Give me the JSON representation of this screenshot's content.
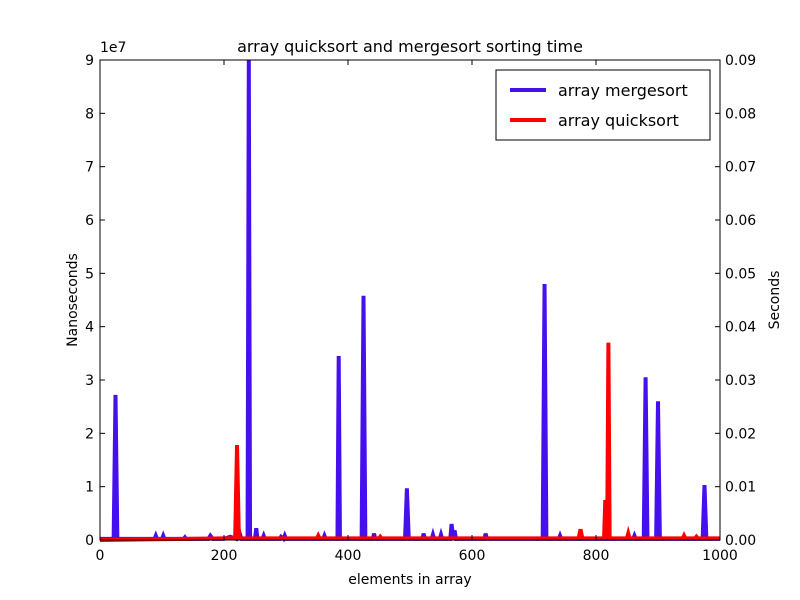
{
  "chart_data": {
    "type": "line",
    "title": "array quicksort and mergesort sorting time",
    "xlabel": "elements in array",
    "ylabel": "Nanoseconds",
    "y2label": "Seconds",
    "y_offset_label": "1e7",
    "xlim": [
      0,
      1000
    ],
    "ylim": [
      0,
      9
    ],
    "y2lim": [
      0,
      0.09
    ],
    "x_ticks": [
      0,
      200,
      400,
      600,
      800,
      1000
    ],
    "y_ticks": [
      0,
      1,
      2,
      3,
      4,
      5,
      6,
      7,
      8,
      9
    ],
    "y2_ticks": [
      "0.00",
      "0.01",
      "0.02",
      "0.03",
      "0.04",
      "0.05",
      "0.06",
      "0.07",
      "0.08",
      "0.09"
    ],
    "grid": false,
    "legend_position": "top-right",
    "series": [
      {
        "name": "array mergesort",
        "color": "#4411ee",
        "x": [
          0,
          22,
          25,
          28,
          88,
          90,
          92,
          100,
          102,
          104,
          135,
          137,
          139,
          175,
          178,
          182,
          200,
          210,
          220,
          224,
          228,
          232,
          236,
          238,
          240,
          242,
          244,
          250,
          252,
          254,
          262,
          264,
          266,
          290,
          292,
          296,
          298,
          300,
          360,
          362,
          364,
          380,
          383,
          385,
          387,
          390,
          392,
          420,
          422,
          425,
          428,
          430,
          440,
          442,
          444,
          490,
          492,
          495,
          498,
          500,
          520,
          522,
          524,
          535,
          537,
          539,
          548,
          550,
          552,
          565,
          567,
          570,
          572,
          574,
          620,
          622,
          624,
          712,
          714,
          717,
          720,
          722,
          740,
          742,
          744,
          860,
          862,
          864,
          875,
          877,
          880,
          883,
          885,
          895,
          897,
          900,
          903,
          905,
          970,
          972,
          975,
          978,
          980,
          1000
        ],
        "values": [
          0.02,
          0.02,
          2.72,
          0.02,
          0.02,
          0.08,
          0.02,
          0.02,
          0.08,
          0.02,
          0.02,
          0.05,
          0.02,
          0.02,
          0.08,
          0.02,
          0.02,
          0.06,
          0.02,
          0.18,
          0.02,
          0.02,
          0.02,
          0.02,
          9.0,
          0.02,
          0.02,
          0.02,
          0.22,
          0.02,
          0.02,
          0.08,
          0.02,
          0.02,
          0.06,
          0.02,
          0.08,
          0.02,
          0.02,
          0.08,
          0.02,
          0.02,
          0.02,
          3.45,
          0.02,
          0.02,
          0.02,
          0.02,
          0.02,
          4.58,
          0.02,
          0.02,
          0.02,
          0.12,
          0.02,
          0.02,
          0.02,
          0.97,
          0.02,
          0.02,
          0.02,
          0.12,
          0.02,
          0.02,
          0.1,
          0.02,
          0.02,
          0.1,
          0.02,
          0.02,
          0.3,
          0.02,
          0.18,
          0.02,
          0.02,
          0.12,
          0.02,
          0.02,
          0.02,
          4.8,
          0.02,
          0.02,
          0.02,
          0.08,
          0.02,
          0.02,
          0.08,
          0.02,
          0.02,
          0.02,
          3.05,
          0.02,
          0.02,
          0.02,
          0.02,
          2.6,
          0.02,
          0.02,
          0.02,
          0.02,
          1.03,
          0.02,
          0.02,
          0.02
        ]
      },
      {
        "name": "array quicksort",
        "color": "#ff0000",
        "x": [
          0,
          200,
          215,
          218,
          221,
          224,
          227,
          300,
          350,
          352,
          354,
          400,
          450,
          452,
          454,
          500,
          600,
          700,
          770,
          772,
          775,
          778,
          780,
          810,
          813,
          815,
          818,
          820,
          822,
          825,
          827,
          830,
          850,
          852,
          854,
          900,
          940,
          942,
          944,
          960,
          962,
          964,
          1000
        ],
        "values": [
          0.0,
          0.03,
          0.03,
          0.03,
          1.78,
          0.03,
          0.03,
          0.03,
          0.03,
          0.08,
          0.03,
          0.03,
          0.03,
          0.06,
          0.03,
          0.03,
          0.03,
          0.03,
          0.03,
          0.03,
          0.2,
          0.03,
          0.03,
          0.03,
          0.03,
          0.75,
          0.03,
          3.7,
          0.03,
          0.03,
          0.03,
          0.03,
          0.03,
          0.12,
          0.03,
          0.03,
          0.03,
          0.08,
          0.03,
          0.03,
          0.06,
          0.03,
          0.03
        ]
      }
    ]
  }
}
